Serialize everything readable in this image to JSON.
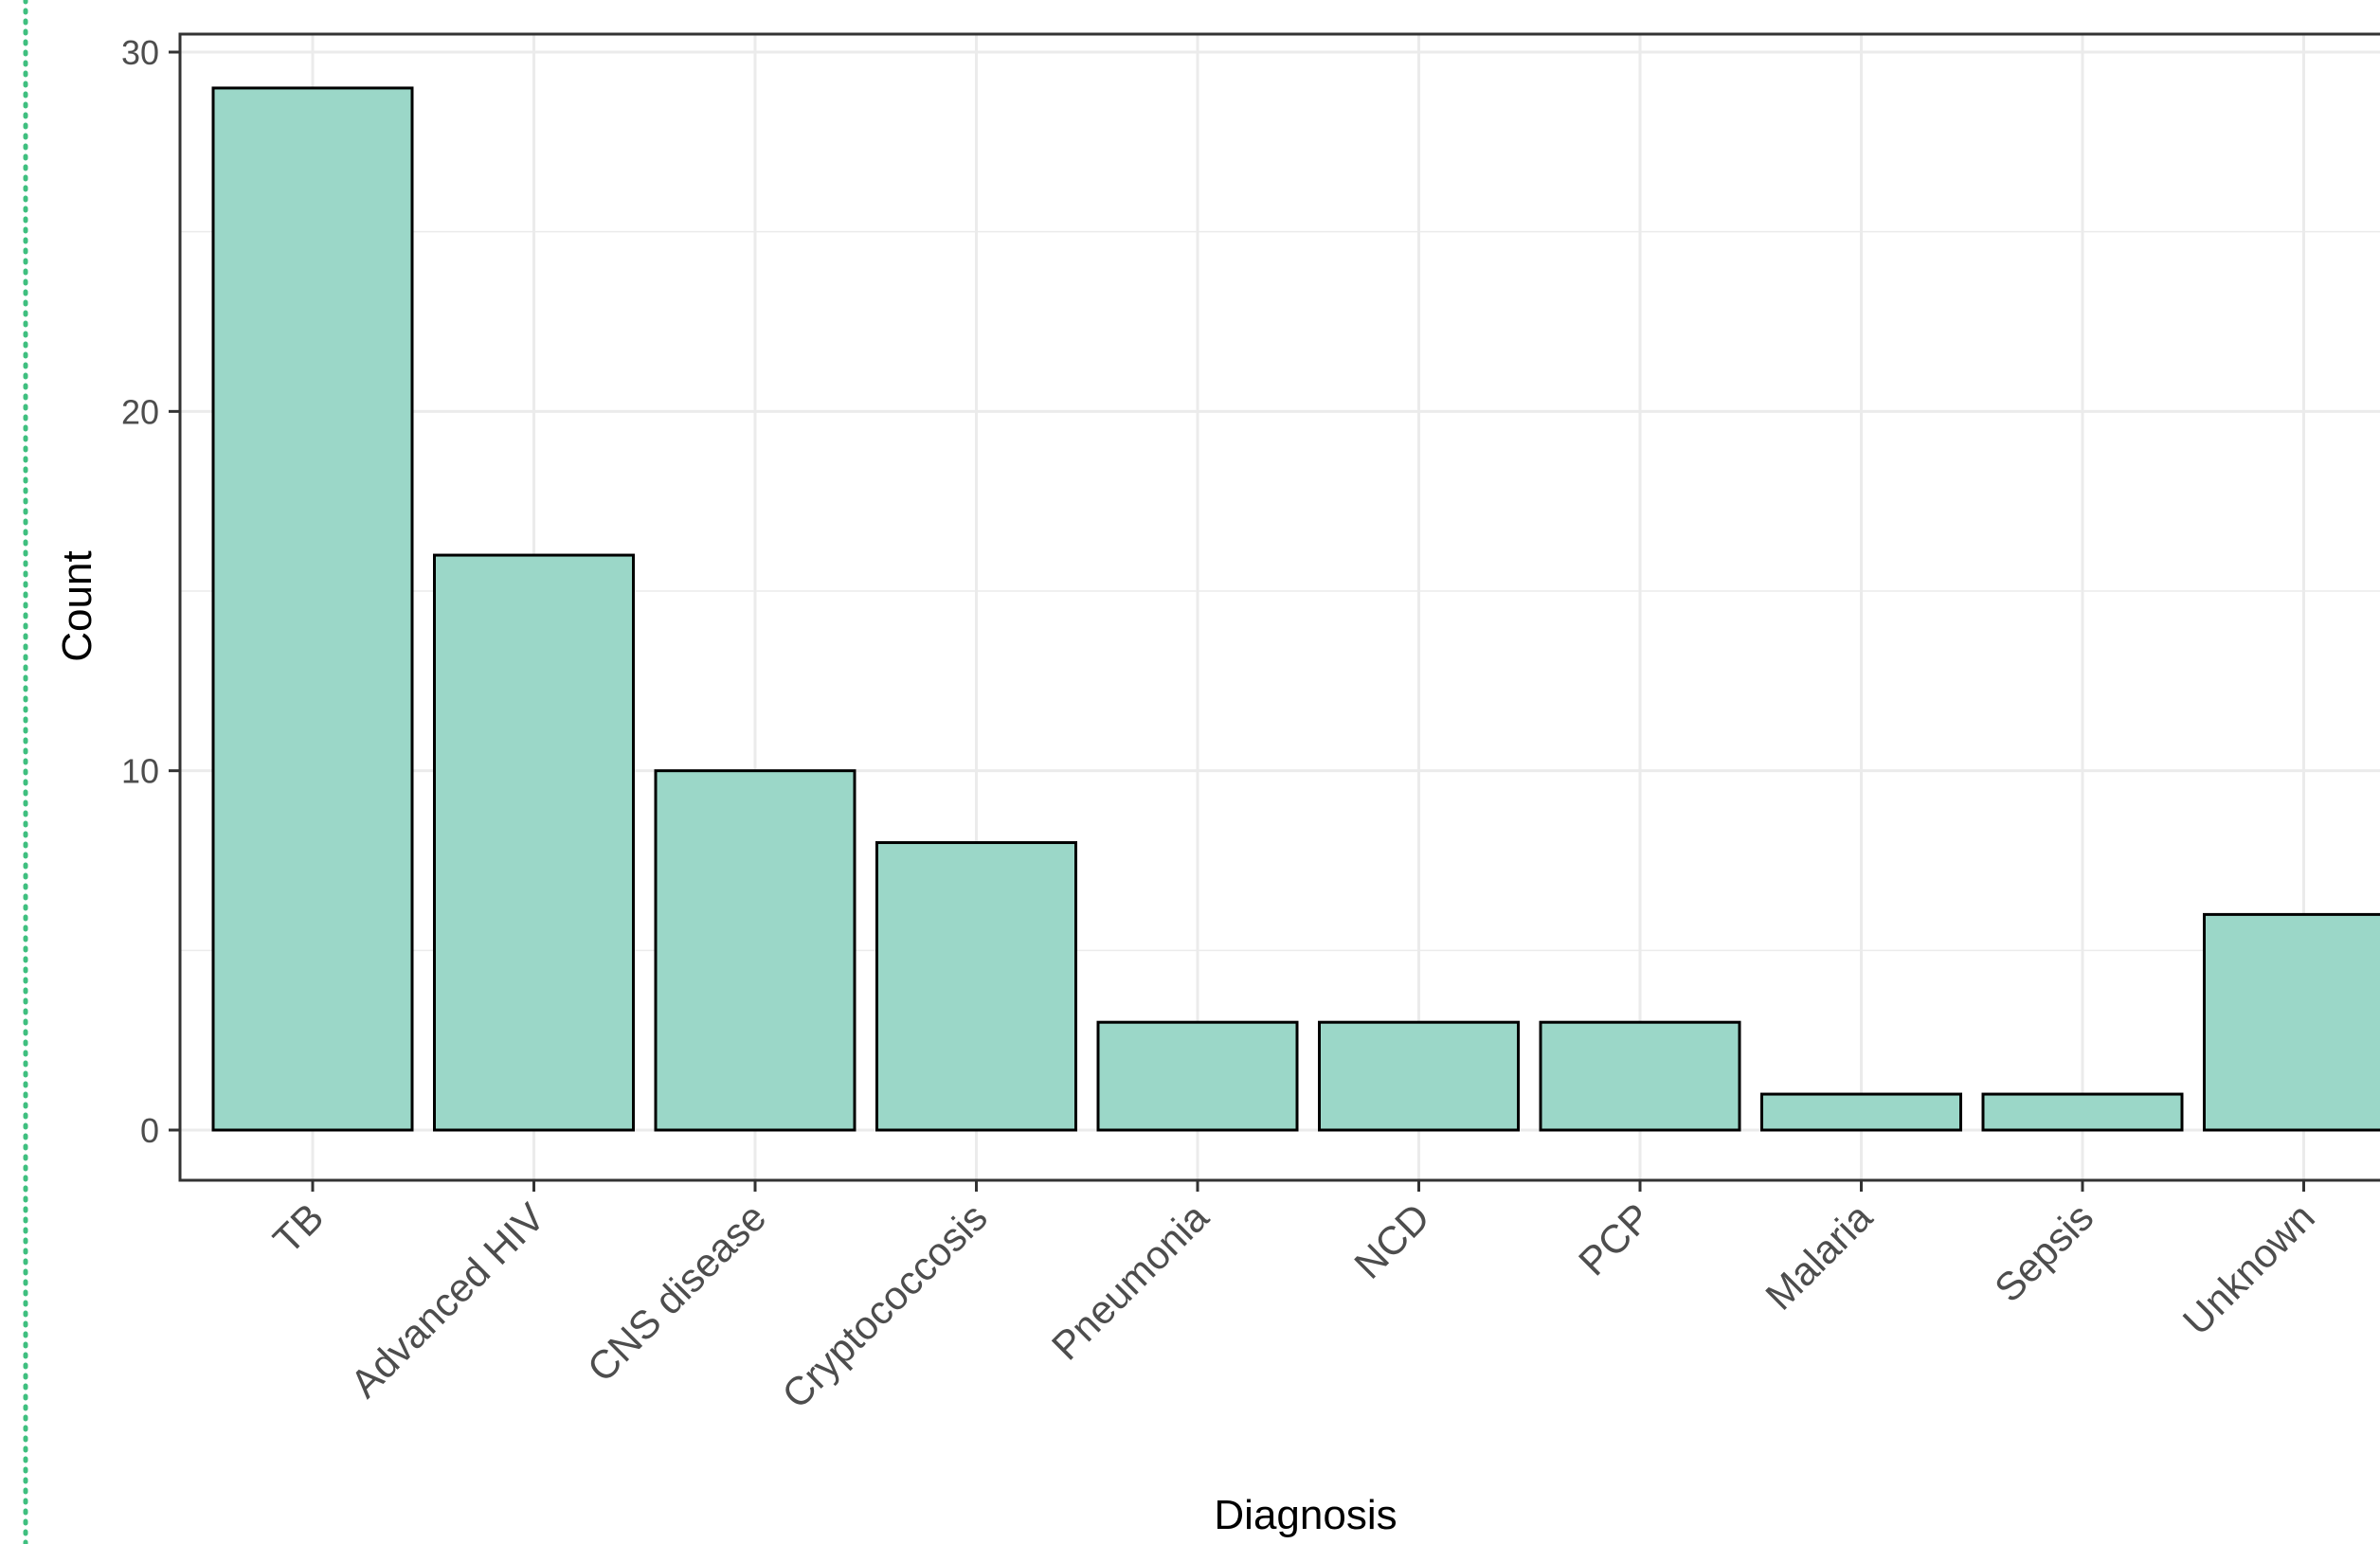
{
  "chart_data": {
    "type": "bar",
    "title": "",
    "xlabel": "Diagnosis",
    "ylabel": "Count",
    "categories": [
      "TB",
      "Advanced HIV",
      "CNS disease",
      "Cryptococcosis",
      "Pneumonia",
      "NCD",
      "PCP",
      "Malaria",
      "Sepsis",
      "Unknown"
    ],
    "values": [
      29,
      16,
      10,
      8,
      3,
      3,
      3,
      1,
      1,
      6
    ],
    "ylim": [
      0,
      30
    ],
    "yticks": [
      "0",
      "10",
      "20",
      "30"
    ],
    "grid": true,
    "legend": "none",
    "colors": {
      "bar_fill": "#9bd7c8",
      "bar_stroke": "#000000",
      "grid": "#ebebeb",
      "panel_border": "#333333",
      "tick_text": "#4d4d4d",
      "title_text": "#000000",
      "left_border_dots": "#3fbf7f"
    }
  }
}
